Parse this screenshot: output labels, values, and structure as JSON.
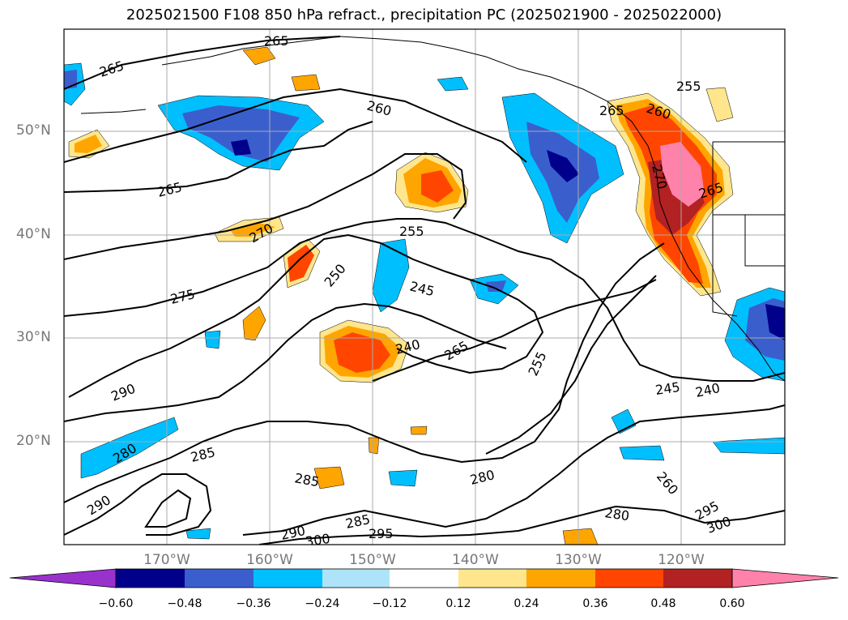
{
  "title": "2025021500 F108 850 hPa refract., precipitation PC (2025021900 - 2025022000)",
  "lat_labels": [
    "50°N",
    "40°N",
    "30°N",
    "20°N"
  ],
  "lon_labels": [
    "170°W",
    "160°W",
    "150°W",
    "140°W",
    "130°W",
    "120°W"
  ],
  "colorbar": {
    "ticks": [
      "−0.60",
      "−0.48",
      "−0.36",
      "−0.24",
      "−0.12",
      "0.12",
      "0.24",
      "0.36",
      "0.48",
      "0.60"
    ],
    "colors": [
      "#9932CC",
      "#00008B",
      "#3A5FCD",
      "#00BFFF",
      "#AEE4FA",
      "#FFFFFF",
      "#FFE68C",
      "#FFA500",
      "#FF4500",
      "#B22222",
      "#FF82AB"
    ]
  },
  "contour_labels": [
    "265",
    "265",
    "260",
    "265",
    "255",
    "260",
    "265",
    "270",
    "265",
    "270",
    "275",
    "255",
    "250",
    "245",
    "240",
    "265",
    "255",
    "290",
    "245",
    "240",
    "285",
    "290",
    "280",
    "285",
    "280",
    "285",
    "290",
    "300",
    "295",
    "280",
    "260",
    "295",
    "300"
  ]
}
